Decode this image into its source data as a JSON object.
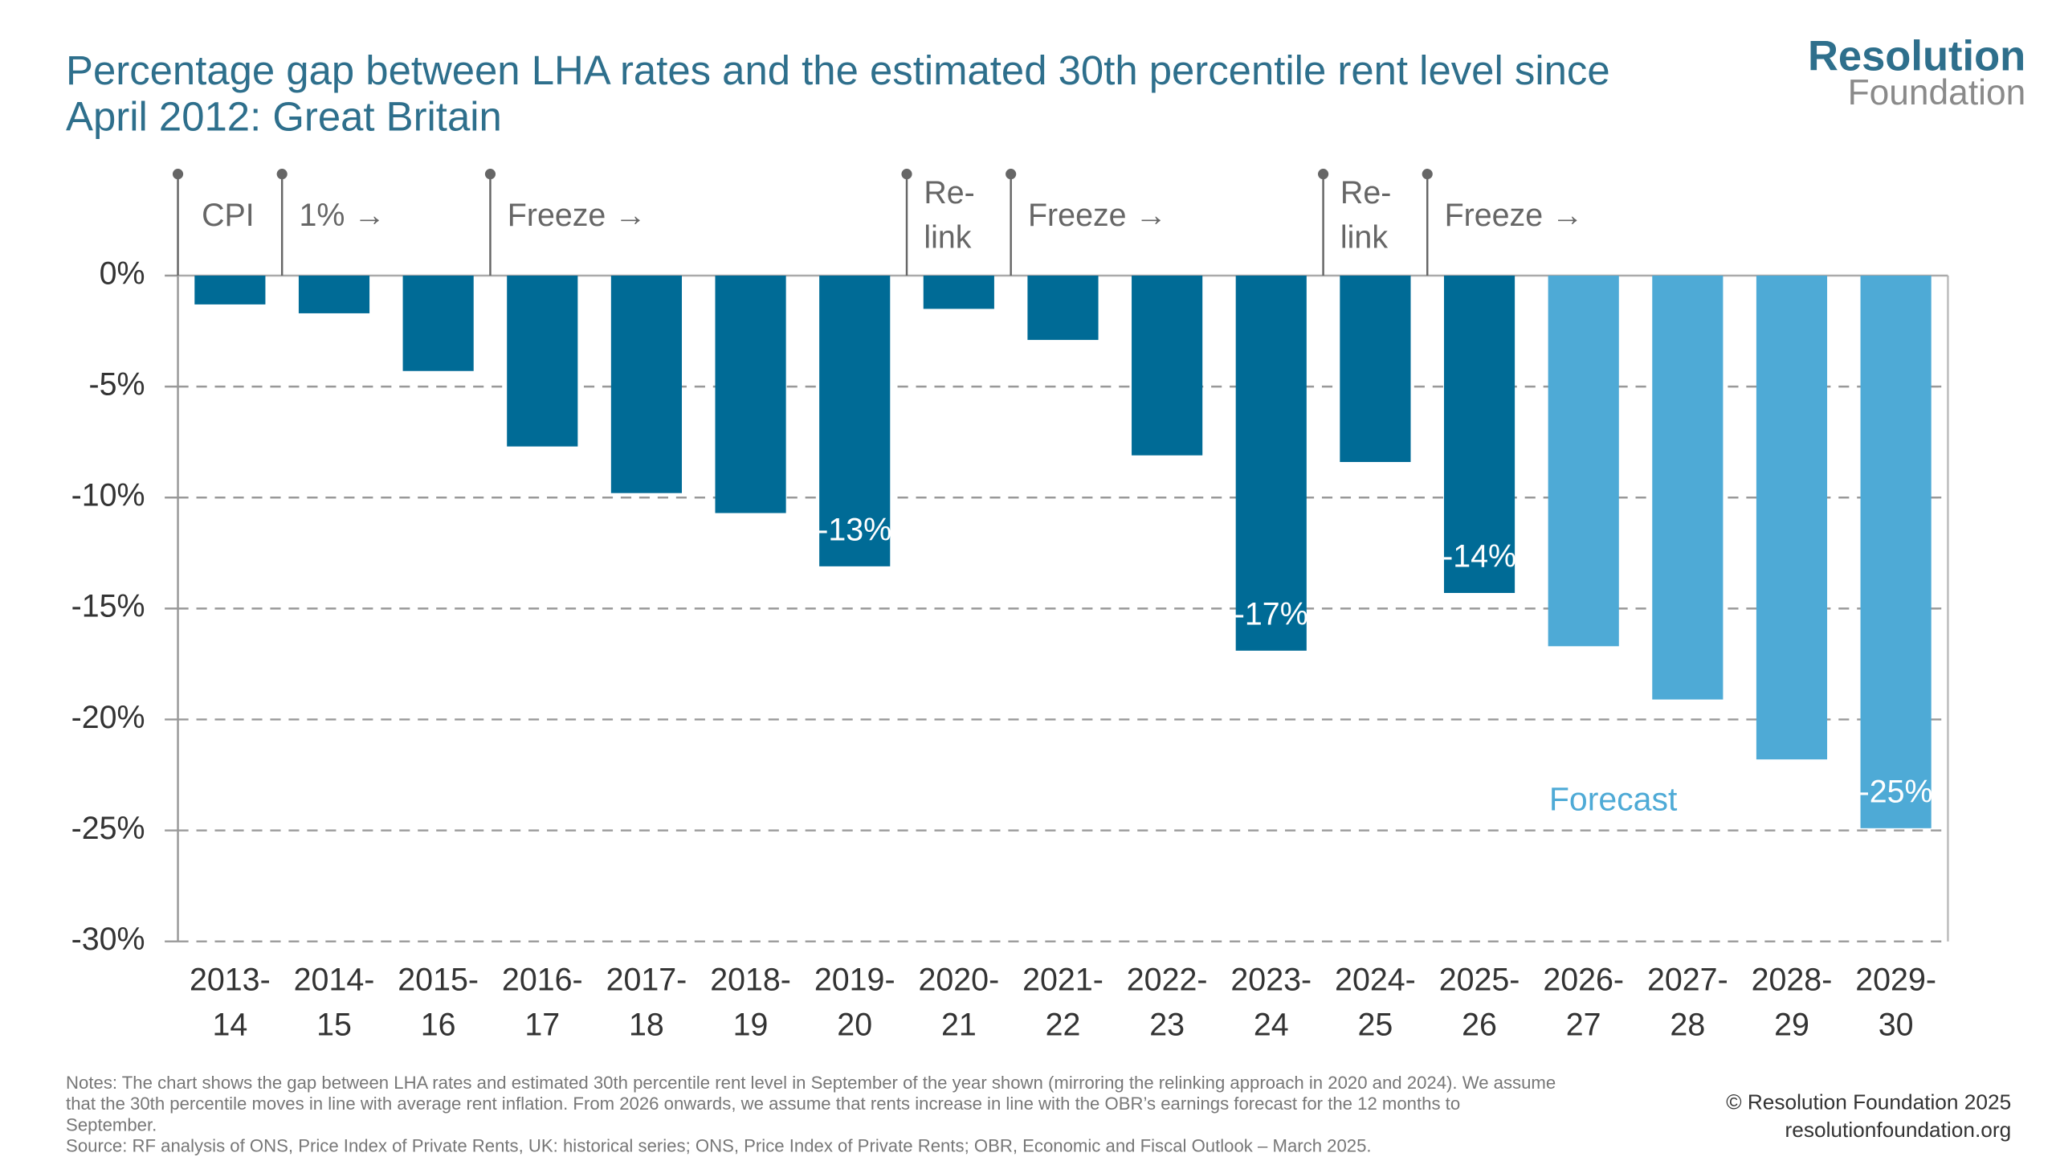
{
  "chart_data": {
    "type": "bar",
    "title": "Percentage gap between LHA rates and the estimated 30th percentile rent level since\nApril 2012: Great Britain",
    "logo": {
      "line1": "Resolution",
      "line2": "Foundation"
    },
    "categories": [
      "2013-\n14",
      "2014-\n15",
      "2015-\n16",
      "2016-\n17",
      "2017-\n18",
      "2018-\n19",
      "2019-\n20",
      "2020-\n21",
      "2021-\n22",
      "2022-\n23",
      "2023-\n24",
      "2024-\n25",
      "2025-\n26",
      "2026-\n27",
      "2027-\n28",
      "2028-\n29",
      "2029-\n30"
    ],
    "values": [
      -1.3,
      -1.7,
      -4.3,
      -7.7,
      -9.8,
      -10.7,
      -13.1,
      -1.5,
      -2.9,
      -8.1,
      -16.9,
      -8.4,
      -14.3,
      -16.7,
      -19.1,
      -21.8,
      -24.9
    ],
    "value_labels": [
      null,
      null,
      null,
      null,
      null,
      null,
      "-13%",
      null,
      null,
      null,
      "-17%",
      null,
      "-14%",
      null,
      null,
      null,
      "-25%"
    ],
    "colors": [
      "#006b96",
      "#006b96",
      "#006b96",
      "#006b96",
      "#006b96",
      "#006b96",
      "#006b96",
      "#006b96",
      "#006b96",
      "#006b96",
      "#006b96",
      "#006b96",
      "#006b96",
      "#4eaad6",
      "#4eaad6",
      "#4eaad6",
      "#4eaad6"
    ],
    "ylim": [
      -30,
      4.5
    ],
    "yticks": [
      {
        "value": 0,
        "label": "0%"
      },
      {
        "value": -5,
        "label": "-5%"
      },
      {
        "value": -10,
        "label": "-10%"
      },
      {
        "value": -15,
        "label": "-15%"
      },
      {
        "value": -20,
        "label": "-20%"
      },
      {
        "value": -25,
        "label": "-25%"
      },
      {
        "value": -30,
        "label": "-30%"
      }
    ],
    "grid": true,
    "annotations": [
      {
        "start": "2013-\n14",
        "label": "CPI"
      },
      {
        "start": "2014-\n15",
        "label": "1% →"
      },
      {
        "start": "2016-\n17",
        "label": "Freeze →"
      },
      {
        "start": "2020-\n21",
        "label": "Re-\nlink"
      },
      {
        "start": "2021-\n22",
        "label": "Freeze →"
      },
      {
        "start": "2024-\n25",
        "label": "Re-\nlink"
      },
      {
        "start": "2025-\n26",
        "label": "Freeze →"
      }
    ],
    "forecast_label": "Forecast",
    "notes": "Notes: The chart shows the gap between LHA rates and estimated 30th percentile rent level in September of the year shown (mirroring the relinking approach in 2020 and 2024). We assume\nthat the 30th percentile moves in line with average rent inflation. From 2026 onwards, we assume that rents increase in line with the OBR’s earnings forecast for the 12 months to\nSeptember.\nSource: RF analysis of ONS, Price Index of Private Rents, UK: historical series; ONS, Price Index of Private Rents; OBR, Economic and Fiscal Outlook – March 2025.",
    "copyright": "© Resolution Foundation 2025",
    "website": "resolutionfoundation.org"
  }
}
